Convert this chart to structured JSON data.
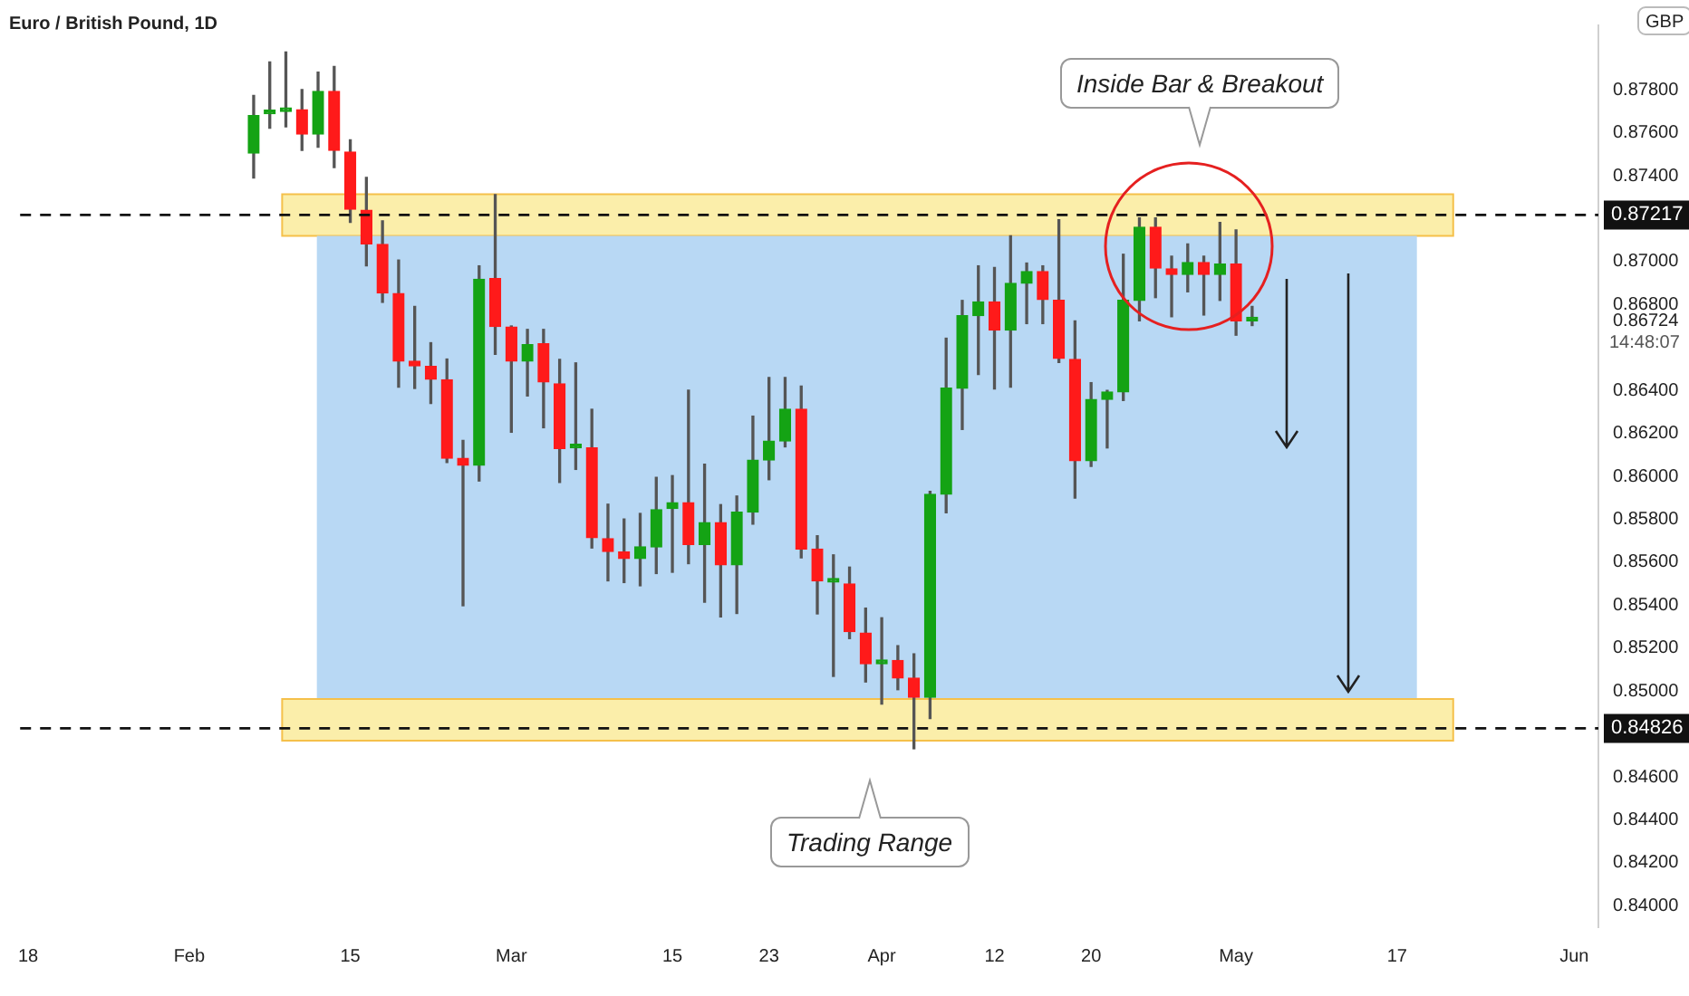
{
  "chart_data": {
    "type": "candlestick",
    "title": "Euro / British Pound, 1D",
    "categories": [
      "18",
      null,
      null,
      null,
      null,
      null,
      null,
      null,
      null,
      null,
      "Feb",
      null,
      null,
      null,
      null,
      null,
      null,
      null,
      null,
      null,
      "15",
      null,
      null,
      null,
      null,
      null,
      null,
      null,
      null,
      null,
      "Mar",
      null,
      null,
      null,
      null,
      null,
      null,
      null,
      null,
      null,
      "15",
      null,
      null,
      null,
      null,
      null,
      "23",
      null,
      null,
      null,
      null,
      null,
      null,
      "Apr",
      null,
      null,
      null,
      null,
      null,
      null,
      "12",
      null,
      null,
      null,
      null,
      null,
      "20",
      null,
      null,
      null,
      null,
      null,
      null,
      null,
      null,
      "May",
      null,
      null,
      null,
      null,
      null,
      null,
      null,
      null,
      null,
      "17",
      null,
      null,
      null,
      null,
      null,
      null,
      null,
      null,
      null,
      null,
      "Jun",
      null
    ],
    "ohlc": [
      null,
      null,
      null,
      null,
      null,
      null,
      null,
      null,
      null,
      null,
      null,
      null,
      null,
      null,
      [
        0.87505,
        0.87774,
        0.87389,
        0.8768
      ],
      [
        0.87688,
        0.8793,
        0.87621,
        0.87696
      ],
      [
        0.87699,
        0.87976,
        0.87627,
        0.87707
      ],
      [
        0.87707,
        0.87801,
        0.87518,
        0.87594
      ],
      [
        0.87594,
        0.87882,
        0.87532,
        0.87793
      ],
      [
        0.87793,
        0.87909,
        0.87438,
        0.87518
      ],
      [
        0.8751,
        0.87567,
        0.87182,
        0.87244
      ],
      [
        0.87239,
        0.87392,
        0.8698,
        0.87082
      ],
      [
        0.8708,
        0.8719,
        0.8681,
        0.86854
      ],
      [
        0.86851,
        0.87007,
        0.86415,
        0.86536
      ],
      [
        0.86536,
        0.86791,
        0.86409,
        0.86514
      ],
      [
        0.86512,
        0.86622,
        0.86339,
        0.86452
      ],
      [
        0.86449,
        0.86546,
        0.86064,
        0.86084
      ],
      [
        0.86084,
        0.86167,
        0.85397,
        0.86051
      ],
      [
        0.86051,
        0.8698,
        0.85978,
        0.86918
      ],
      [
        0.86921,
        0.87312,
        0.86568,
        0.86698
      ],
      [
        0.86695,
        0.867,
        0.86205,
        0.86536
      ],
      [
        0.86536,
        0.86684,
        0.86374,
        0.86613
      ],
      [
        0.86617,
        0.86684,
        0.86226,
        0.86439
      ],
      [
        0.86431,
        0.86544,
        0.85971,
        0.86129
      ],
      [
        0.86132,
        0.86528,
        0.86032,
        0.86132
      ],
      [
        0.86132,
        0.86312,
        0.85666,
        0.85714
      ],
      [
        0.85709,
        0.8587,
        0.85513,
        0.8565
      ],
      [
        0.85647,
        0.85801,
        0.85505,
        0.85617
      ],
      [
        0.85617,
        0.85827,
        0.8549,
        0.85671
      ],
      [
        0.85671,
        0.85995,
        0.85547,
        0.85844
      ],
      [
        0.8585,
        0.86003,
        0.85553,
        0.85877
      ],
      [
        0.85877,
        0.86401,
        0.85593,
        0.85682
      ],
      [
        0.85682,
        0.86056,
        0.85413,
        0.85784
      ],
      [
        0.85784,
        0.85868,
        0.85345,
        0.85587
      ],
      [
        0.85587,
        0.85908,
        0.85361,
        0.85833
      ],
      [
        0.85833,
        0.8628,
        0.85777,
        0.86075
      ],
      [
        0.86075,
        0.8646,
        0.85984,
        0.86164
      ],
      [
        0.86164,
        0.8646,
        0.86137,
        0.86312
      ],
      [
        0.86312,
        0.8642,
        0.8562,
        0.85661
      ],
      [
        0.85661,
        0.85723,
        0.85359,
        0.85513
      ],
      [
        0.85507,
        0.85634,
        0.85068,
        0.85507
      ],
      [
        0.85499,
        0.85577,
        0.85244,
        0.85276
      ],
      [
        0.8527,
        0.85386,
        0.85042,
        0.85127
      ],
      [
        0.85127,
        0.85341,
        0.84939,
        0.85142
      ],
      [
        0.85142,
        0.85211,
        0.85006,
        0.8506
      ],
      [
        0.8506,
        0.85173,
        0.84731,
        0.84971
      ],
      [
        0.84971,
        0.8593,
        0.84872,
        0.85916
      ],
      [
        0.85916,
        0.86643,
        0.8583,
        0.8641
      ],
      [
        0.8641,
        0.86819,
        0.86218,
        0.86748
      ],
      [
        0.86748,
        0.8698,
        0.86474,
        0.86812
      ],
      [
        0.86812,
        0.86972,
        0.86407,
        0.86681
      ],
      [
        0.86681,
        0.8712,
        0.86415,
        0.86899
      ],
      [
        0.86899,
        0.86993,
        0.86711,
        0.86953
      ],
      [
        0.86953,
        0.8698,
        0.86711,
        0.86823
      ],
      [
        0.86819,
        0.87195,
        0.8653,
        0.86549
      ],
      [
        0.86544,
        0.86724,
        0.85898,
        0.86072
      ],
      [
        0.86072,
        0.86436,
        0.86046,
        0.86358
      ],
      [
        0.86358,
        0.864,
        0.86132,
        0.86393
      ],
      [
        0.86393,
        0.87034,
        0.86353,
        0.86819
      ],
      [
        0.86819,
        0.87203,
        0.86724,
        0.8716
      ],
      [
        0.8716,
        0.87203,
        0.86832,
        0.86969
      ],
      [
        0.86966,
        0.87025,
        0.86743,
        0.8694
      ],
      [
        0.8694,
        0.87082,
        0.86859,
        0.86996
      ],
      [
        0.86996,
        0.87025,
        0.86751,
        0.8694
      ],
      [
        0.8694,
        0.87182,
        0.86819,
        0.86988
      ],
      [
        0.86988,
        0.87147,
        0.86657,
        0.86724
      ],
      [
        0.86724,
        0.86791,
        0.86702,
        0.86724
      ],
      null,
      null,
      null,
      null,
      null,
      null,
      null,
      null,
      null,
      null,
      null,
      null,
      null,
      null,
      null,
      null,
      null,
      null,
      null,
      null,
      null
    ],
    "ylim": [
      0.839,
      0.881
    ],
    "yticks": [
      {
        "value": 0.84,
        "label": "0.84000"
      },
      {
        "value": 0.842,
        "label": "0.84200"
      },
      {
        "value": 0.844,
        "label": "0.84400"
      },
      {
        "value": 0.846,
        "label": "0.84600"
      },
      {
        "value": 0.85,
        "label": "0.85000"
      },
      {
        "value": 0.852,
        "label": "0.85200"
      },
      {
        "value": 0.854,
        "label": "0.85400"
      },
      {
        "value": 0.856,
        "label": "0.85600"
      },
      {
        "value": 0.858,
        "label": "0.85800"
      },
      {
        "value": 0.86,
        "label": "0.86000"
      },
      {
        "value": 0.862,
        "label": "0.86200"
      },
      {
        "value": 0.864,
        "label": "0.86400"
      },
      {
        "value": 0.86724,
        "label": "0.86724"
      },
      {
        "value": 0.868,
        "label": "0.86800"
      },
      {
        "value": 0.87,
        "label": "0.87000"
      },
      {
        "value": 0.874,
        "label": "0.87400"
      },
      {
        "value": 0.876,
        "label": "0.87600"
      },
      {
        "value": 0.878,
        "label": "0.87800"
      }
    ],
    "ref_lines": [
      {
        "axis": "y",
        "value": 0.87217,
        "label": "0.87217",
        "line_style": "dashed"
      },
      {
        "axis": "y",
        "value": 0.84826,
        "label": "0.84826",
        "line_style": "dashed"
      }
    ],
    "bands": [
      {
        "axis": "y",
        "from": 0.8712,
        "to": 0.87314,
        "color": "#fbeeaa"
      },
      {
        "axis": "y",
        "from": 0.84963,
        "to": 0.8712,
        "color": "#b8d8f4"
      },
      {
        "axis": "y",
        "from": 0.84769,
        "to": 0.84963,
        "color": "#fbeeaa"
      }
    ],
    "annotations": [
      "Inside Bar & Breakout",
      "Trading Range",
      "14:48:07",
      "GBP"
    ],
    "grid": false,
    "legend": false
  }
}
